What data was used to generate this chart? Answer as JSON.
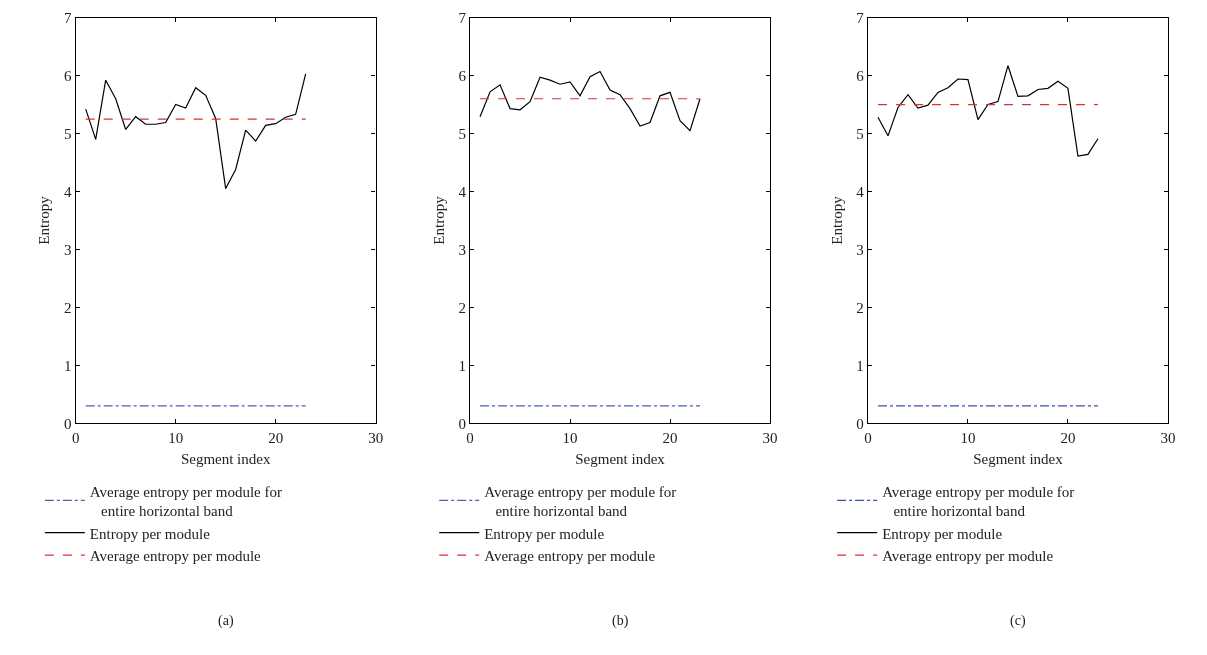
{
  "chart_data": [
    {
      "type": "line",
      "xlabel": "Segment index",
      "ylabel": "Entropy",
      "xlim": [
        0,
        30
      ],
      "xticks": [
        0,
        10,
        20,
        30
      ],
      "ylim": [
        0,
        7
      ],
      "yticks": [
        0,
        1,
        2,
        3,
        4,
        5,
        6,
        7
      ],
      "legend": "bottom",
      "annotations": [
        "(a)"
      ],
      "series": [
        {
          "name": "Average entropy per module for entire horizontal band",
          "color": "#4a62b0",
          "line_style": "dashdot",
          "x": [
            1,
            23
          ],
          "values": [
            0.3,
            0.3
          ]
        },
        {
          "name": "Entropy per module",
          "color": "#000000",
          "line_style": "solid",
          "x": [
            1,
            2,
            3,
            4,
            5,
            6,
            7,
            8,
            9,
            10,
            11,
            12,
            13,
            14,
            15,
            16,
            17,
            18,
            19,
            20,
            21,
            22,
            23
          ],
          "values": [
            5.42,
            4.9,
            5.92,
            5.6,
            5.07,
            5.29,
            5.16,
            5.16,
            5.19,
            5.5,
            5.44,
            5.79,
            5.66,
            5.26,
            4.05,
            4.38,
            5.06,
            4.87,
            5.14,
            5.17,
            5.28,
            5.33,
            6.03
          ]
        },
        {
          "name": "Average entropy per module",
          "color": "#e03030",
          "line_style": "dashed",
          "x": [
            1,
            23
          ],
          "values": [
            5.25,
            5.25
          ]
        }
      ]
    },
    {
      "type": "line",
      "xlabel": "Segment index",
      "ylabel": "Entropy",
      "xlim": [
        0,
        30
      ],
      "xticks": [
        0,
        10,
        20,
        30
      ],
      "ylim": [
        0,
        7
      ],
      "yticks": [
        0,
        1,
        2,
        3,
        4,
        5,
        6,
        7
      ],
      "legend": "bottom",
      "annotations": [
        "(b)"
      ],
      "series": [
        {
          "name": "Average entropy per module for entire horizontal band",
          "color": "#4a62b0",
          "line_style": "dashdot",
          "x": [
            1,
            23
          ],
          "values": [
            0.3,
            0.3
          ]
        },
        {
          "name": "Entropy per module",
          "color": "#000000",
          "line_style": "solid",
          "x": [
            1,
            2,
            3,
            4,
            5,
            6,
            7,
            8,
            9,
            10,
            11,
            12,
            13,
            14,
            15,
            16,
            17,
            18,
            19,
            20,
            21,
            22,
            23
          ],
          "values": [
            5.29,
            5.72,
            5.84,
            5.43,
            5.41,
            5.55,
            5.97,
            5.92,
            5.85,
            5.89,
            5.65,
            5.98,
            6.07,
            5.75,
            5.67,
            5.43,
            5.13,
            5.19,
            5.65,
            5.71,
            5.22,
            5.05,
            5.6
          ]
        },
        {
          "name": "Average entropy per module",
          "color": "#e03030",
          "line_style": "dashed",
          "x": [
            1,
            23
          ],
          "values": [
            5.6,
            5.6
          ]
        }
      ]
    },
    {
      "type": "line",
      "xlabel": "Segment index",
      "ylabel": "Entropy",
      "xlim": [
        0,
        30
      ],
      "xticks": [
        0,
        10,
        20,
        30
      ],
      "ylim": [
        0,
        7
      ],
      "yticks": [
        0,
        1,
        2,
        3,
        4,
        5,
        6,
        7
      ],
      "legend": "bottom",
      "annotations": [
        "(c)"
      ],
      "series": [
        {
          "name": "Average entropy per module for entire horizontal band",
          "color": "#3a52a8",
          "line_style": "dashdot",
          "x": [
            1,
            23
          ],
          "values": [
            0.3,
            0.3
          ]
        },
        {
          "name": "Entropy per module",
          "color": "#000000",
          "line_style": "solid",
          "x": [
            1,
            2,
            3,
            4,
            5,
            6,
            7,
            8,
            9,
            10,
            11,
            12,
            13,
            14,
            15,
            16,
            17,
            18,
            19,
            20,
            21,
            22,
            23
          ],
          "values": [
            5.28,
            4.96,
            5.45,
            5.67,
            5.44,
            5.49,
            5.71,
            5.79,
            5.94,
            5.93,
            5.24,
            5.5,
            5.55,
            6.17,
            5.64,
            5.65,
            5.76,
            5.78,
            5.9,
            5.78,
            4.61,
            4.64,
            4.91
          ]
        },
        {
          "name": "Average entropy per module",
          "color": "#e03030",
          "line_style": "dashed",
          "x": [
            1,
            23
          ],
          "values": [
            5.5,
            5.5
          ]
        }
      ]
    }
  ]
}
